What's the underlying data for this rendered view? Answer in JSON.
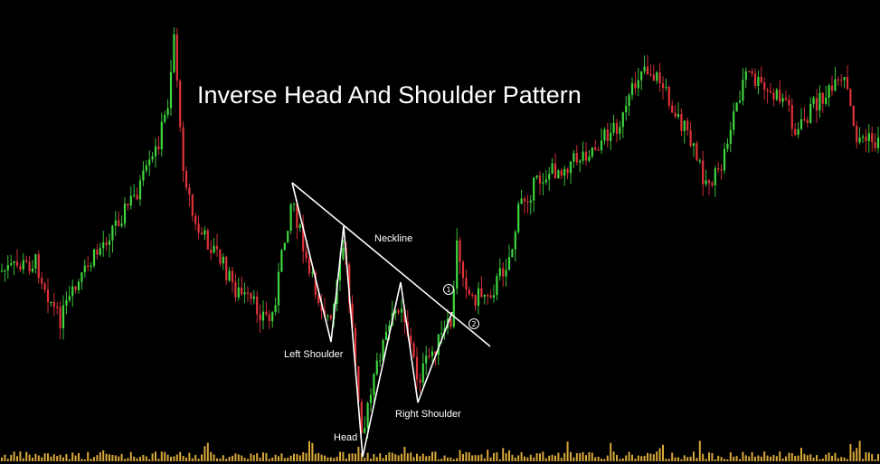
{
  "chart_data": {
    "type": "candlestick",
    "title": "Inverse Head And Shoulder Pattern",
    "colors": {
      "background": "#000000",
      "up": "#3fd63f",
      "down": "#e0343a",
      "pattern": "#ffffff",
      "volume": "#d9a83a"
    },
    "annotations": {
      "neckline": "Neckline",
      "left_shoulder": "Left Shoulder",
      "head": "Head",
      "right_shoulder": "Right Shoulder",
      "marker_1": "1",
      "marker_2": "2"
    },
    "pattern_points": {
      "neckline": [
        [
          0.0,
          305
        ],
        [
          1.0,
          118
        ]
      ],
      "zigzag": [
        [
          0.0,
          305
        ],
        [
          0.2,
          140
        ],
        [
          0.25,
          240
        ],
        [
          0.3,
          20
        ],
        [
          0.4,
          190
        ],
        [
          0.52,
          0
        ],
        [
          0.62,
          205
        ],
        [
          0.73,
          60
        ],
        [
          1.0,
          160
        ]
      ]
    },
    "ylim": [
      0,
      500
    ]
  }
}
